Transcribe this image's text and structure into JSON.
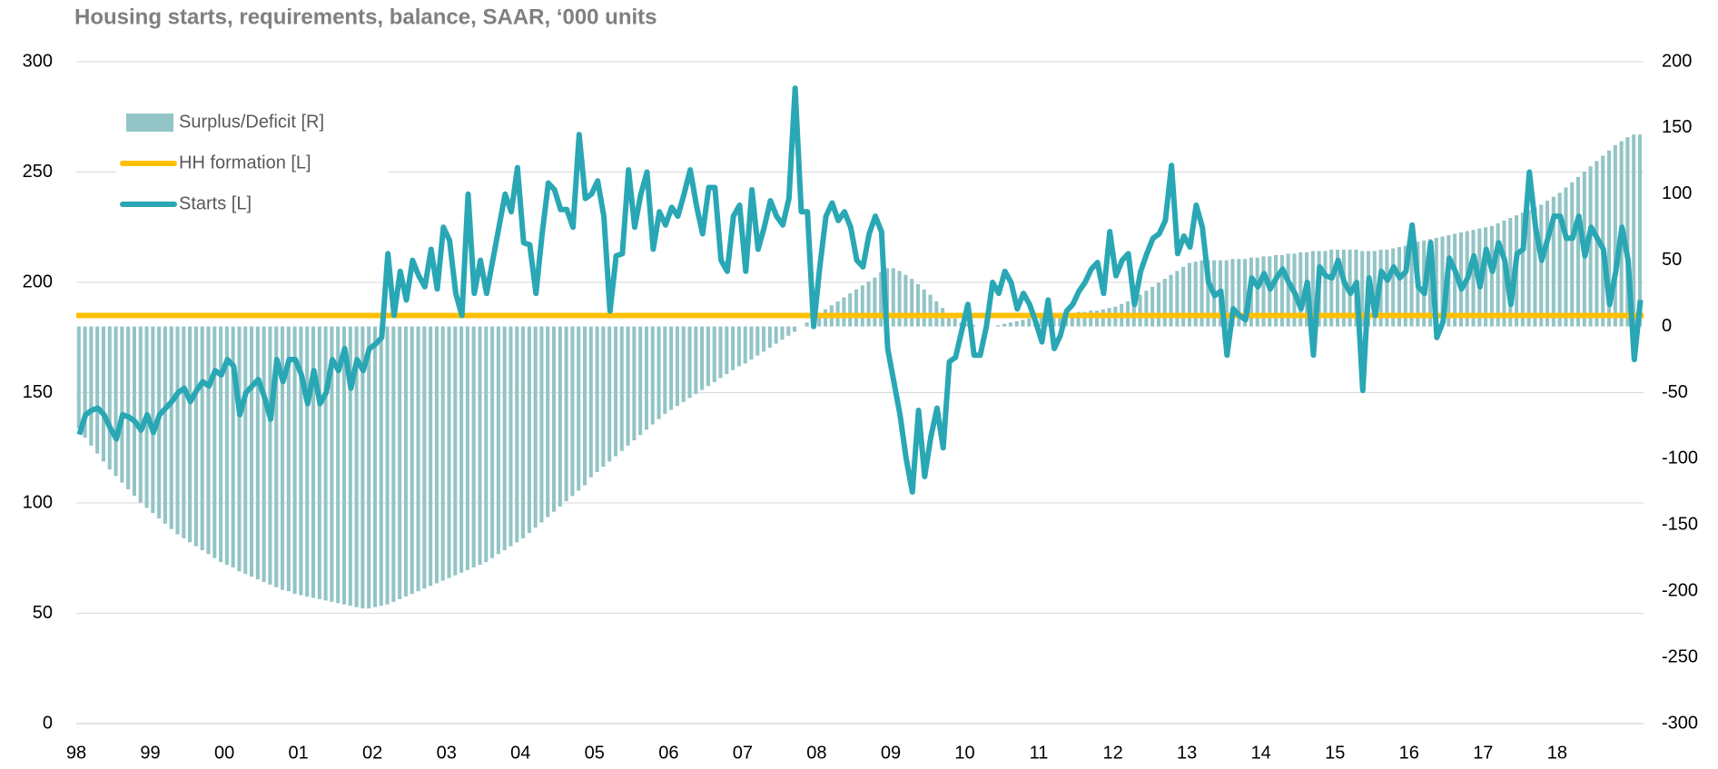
{
  "chart_data": {
    "type": "bar-line",
    "title": "Housing starts, requirements, balance, SAAR, ‘000 units",
    "categories": [
      "98",
      null,
      null,
      null,
      null,
      null,
      null,
      null,
      null,
      null,
      null,
      null,
      "99",
      null,
      null,
      null,
      null,
      null,
      null,
      null,
      null,
      null,
      null,
      null,
      "00",
      null,
      null,
      null,
      null,
      null,
      null,
      null,
      null,
      null,
      null,
      null,
      "01",
      null,
      null,
      null,
      null,
      null,
      null,
      null,
      null,
      null,
      null,
      null,
      "02",
      null,
      null,
      null,
      null,
      null,
      null,
      null,
      null,
      null,
      null,
      null,
      "03",
      null,
      null,
      null,
      null,
      null,
      null,
      null,
      null,
      null,
      null,
      null,
      "04",
      null,
      null,
      null,
      null,
      null,
      null,
      null,
      null,
      null,
      null,
      null,
      "05",
      null,
      null,
      null,
      null,
      null,
      null,
      null,
      null,
      null,
      null,
      null,
      "06",
      null,
      null,
      null,
      null,
      null,
      null,
      null,
      null,
      null,
      null,
      null,
      "07",
      null,
      null,
      null,
      null,
      null,
      null,
      null,
      null,
      null,
      null,
      null,
      "08",
      null,
      null,
      null,
      null,
      null,
      null,
      null,
      null,
      null,
      null,
      null,
      "09",
      null,
      null,
      null,
      null,
      null,
      null,
      null,
      null,
      null,
      null,
      null,
      "10",
      null,
      null,
      null,
      null,
      null,
      null,
      null,
      null,
      null,
      null,
      null,
      "11",
      null,
      null,
      null,
      null,
      null,
      null,
      null,
      null,
      null,
      null,
      null,
      "12",
      null,
      null,
      null,
      null,
      null,
      null,
      null,
      null,
      null,
      null,
      null,
      "13",
      null,
      null,
      null,
      null,
      null,
      null,
      null,
      null,
      null,
      null,
      null,
      "14",
      null,
      null,
      null,
      null,
      null,
      null,
      null,
      null,
      null,
      null,
      null,
      "15",
      null,
      null,
      null,
      null,
      null,
      null,
      null,
      null,
      null,
      null,
      null,
      "16",
      null,
      null,
      null,
      null,
      null,
      null,
      null,
      null,
      null,
      null,
      null,
      "17",
      null,
      null,
      null,
      null,
      null,
      null,
      null,
      null,
      null,
      null,
      null,
      "18",
      null,
      null,
      null,
      null,
      null,
      null,
      null,
      null,
      null,
      null,
      null,
      null,
      null
    ],
    "ylim": [
      0,
      300
    ],
    "yticks": [
      0,
      50,
      100,
      150,
      200,
      250,
      300
    ],
    "y2lim": [
      -300,
      200
    ],
    "y2ticks": [
      -300,
      -250,
      -200,
      -150,
      -100,
      -50,
      0,
      50,
      100,
      150,
      200
    ],
    "grid": true,
    "legend": "upper-left",
    "series": [
      {
        "name": "Surplus/Deficit [R]",
        "type": "bar",
        "axis": "y2",
        "color": "#93c4c6",
        "values": [
          -77,
          -84,
          -90,
          -96,
          -102,
          -108,
          -113,
          -118,
          -123,
          -128,
          -133,
          -137,
          -141,
          -145,
          -149,
          -153,
          -157,
          -160,
          -163,
          -166,
          -169,
          -172,
          -175,
          -178,
          -180,
          -182,
          -185,
          -187,
          -189,
          -191,
          -193,
          -195,
          -197,
          -199,
          -200,
          -202,
          -203,
          -204,
          -205,
          -206,
          -207,
          -208,
          -209,
          -210,
          -211,
          -212,
          -213,
          -213,
          -212,
          -211,
          -210,
          -208,
          -206,
          -204,
          -202,
          -200,
          -198,
          -196,
          -194,
          -192,
          -190,
          -188,
          -186,
          -184,
          -182,
          -180,
          -178,
          -175,
          -172,
          -169,
          -166,
          -163,
          -160,
          -156,
          -152,
          -148,
          -144,
          -140,
          -136,
          -132,
          -128,
          -124,
          -120,
          -114,
          -110,
          -106,
          -102,
          -98,
          -94,
          -90,
          -86,
          -82,
          -78,
          -74,
          -70,
          -66,
          -63,
          -60,
          -57,
          -54,
          -51,
          -48,
          -45,
          -42,
          -39,
          -36,
          -33,
          -30,
          -28,
          -25,
          -22,
          -19,
          -16,
          -13,
          -10,
          -7,
          -4,
          0,
          3,
          7,
          10,
          13,
          16,
          19,
          22,
          25,
          28,
          31,
          34,
          37,
          41,
          44,
          44,
          42,
          39,
          36,
          32,
          28,
          24,
          19,
          14,
          10,
          6,
          3,
          2,
          1,
          0,
          -1,
          0,
          1,
          2,
          3,
          4,
          5,
          6,
          7,
          8,
          8,
          9,
          9,
          10,
          10,
          11,
          11,
          12,
          12,
          13,
          14,
          15,
          17,
          19,
          21,
          24,
          27,
          30,
          33,
          36,
          39,
          42,
          45,
          48,
          49,
          50,
          50,
          50,
          50,
          50,
          51,
          51,
          51,
          52,
          52,
          53,
          53,
          54,
          54,
          55,
          55,
          56,
          56,
          57,
          57,
          57,
          58,
          58,
          58,
          58,
          58,
          57,
          57,
          57,
          58,
          58,
          59,
          60,
          61,
          63,
          64,
          65,
          66,
          67,
          68,
          69,
          70,
          71,
          72,
          73,
          74,
          75,
          76,
          78,
          80,
          82,
          84,
          86,
          88,
          90,
          92,
          95,
          98,
          101,
          105,
          109,
          113,
          117,
          121,
          125,
          129,
          133,
          137,
          140,
          143,
          145,
          145
        ]
      },
      {
        "name": "HH formation [L]",
        "type": "hline",
        "color": "#ffc000",
        "value": 185
      },
      {
        "name": "Starts [L]",
        "type": "line",
        "color": "#2aa7b4",
        "values": [
          131,
          140,
          142,
          143,
          140,
          134,
          129,
          140,
          139,
          137,
          133,
          140,
          132,
          140,
          143,
          146,
          150,
          152,
          146,
          151,
          155,
          153,
          160,
          158,
          165,
          162,
          140,
          150,
          153,
          156,
          148,
          138,
          165,
          155,
          165,
          165,
          158,
          145,
          160,
          145,
          150,
          165,
          160,
          170,
          152,
          165,
          160,
          170,
          172,
          175,
          213,
          185,
          205,
          192,
          210,
          203,
          198,
          215,
          197,
          225,
          219,
          195,
          185,
          240,
          195,
          210,
          195,
          210,
          225,
          240,
          232,
          252,
          218,
          217,
          195,
          222,
          245,
          242,
          233,
          233,
          225,
          267,
          238,
          240,
          246,
          230,
          187,
          212,
          213,
          251,
          225,
          240,
          250,
          215,
          232,
          226,
          234,
          230,
          240,
          251,
          235,
          222,
          243,
          243,
          210,
          205,
          230,
          235,
          205,
          242,
          215,
          225,
          237,
          230,
          226,
          238,
          288,
          232,
          232,
          180,
          207,
          230,
          236,
          228,
          232,
          225,
          210,
          207,
          222,
          230,
          223,
          170,
          155,
          140,
          120,
          105,
          142,
          112,
          130,
          143,
          125,
          164,
          166,
          178,
          190,
          167,
          167,
          180,
          200,
          195,
          205,
          200,
          188,
          195,
          190,
          182,
          173,
          192,
          170,
          176,
          187,
          190,
          196,
          200,
          206,
          209,
          195,
          223,
          203,
          210,
          213,
          190,
          205,
          213,
          220,
          222,
          228,
          253,
          213,
          221,
          216,
          235,
          225,
          200,
          194,
          196,
          167,
          188,
          185,
          183,
          202,
          198,
          204,
          197,
          202,
          206,
          200,
          195,
          188,
          200,
          167,
          207,
          203,
          202,
          210,
          200,
          195,
          200,
          151,
          202,
          185,
          205,
          201,
          207,
          202,
          205,
          226,
          198,
          195,
          218,
          175,
          182,
          211,
          205,
          197,
          202,
          212,
          198,
          215,
          205,
          218,
          210,
          190,
          213,
          215,
          250,
          225,
          210,
          220,
          230,
          230,
          220,
          220,
          230,
          212,
          225,
          220,
          215,
          190,
          205,
          225,
          210,
          165,
          192
        ]
      }
    ]
  }
}
